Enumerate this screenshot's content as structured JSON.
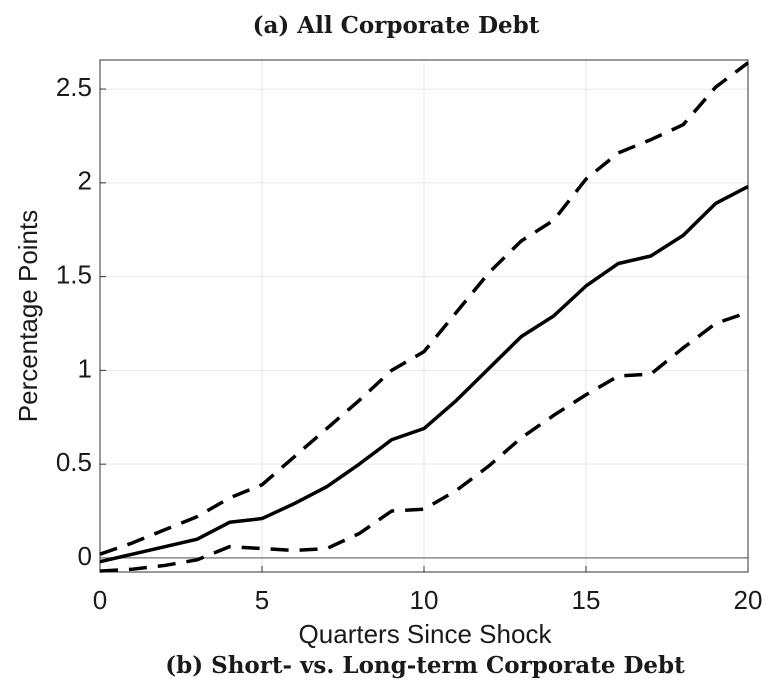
{
  "chart_data": {
    "type": "line",
    "title": "(a) All Corporate Debt",
    "caption": "(b) Short- vs. Long-term Corporate Debt",
    "x_label": "Quarters Since Shock",
    "y_label": "Percentage Points",
    "x": [
      0,
      1,
      2,
      3,
      4,
      5,
      6,
      7,
      8,
      9,
      10,
      11,
      12,
      13,
      14,
      15,
      16,
      17,
      18,
      19,
      20
    ],
    "series": [
      {
        "color": "#000000",
        "style": "solid",
        "values": [
          -0.02,
          0.02,
          0.06,
          0.1,
          0.19,
          0.21,
          0.29,
          0.38,
          0.5,
          0.63,
          0.69,
          0.84,
          1.01,
          1.18,
          1.29,
          1.45,
          1.57,
          1.61,
          1.72,
          1.89,
          1.98
        ]
      },
      {
        "color": "#000000",
        "style": "dashed",
        "values": [
          0.02,
          0.08,
          0.15,
          0.22,
          0.32,
          0.39,
          0.54,
          0.69,
          0.84,
          1.0,
          1.1,
          1.31,
          1.52,
          1.69,
          1.8,
          2.02,
          2.16,
          2.23,
          2.31,
          2.51,
          2.64
        ]
      },
      {
        "color": "#000000",
        "style": "dashed",
        "values": [
          -0.07,
          -0.06,
          -0.04,
          -0.01,
          0.06,
          0.05,
          0.04,
          0.05,
          0.13,
          0.25,
          0.26,
          0.36,
          0.49,
          0.64,
          0.76,
          0.87,
          0.97,
          0.98,
          1.12,
          1.25,
          1.31
        ]
      }
    ],
    "xlim": [
      0,
      20
    ],
    "xticks": [
      0,
      5,
      10,
      15,
      20
    ],
    "ylim": [
      -0.075,
      2.655
    ],
    "yticks": [
      0,
      0.5,
      1,
      1.5,
      2,
      2.5
    ],
    "grid": true,
    "zero_line": true
  }
}
